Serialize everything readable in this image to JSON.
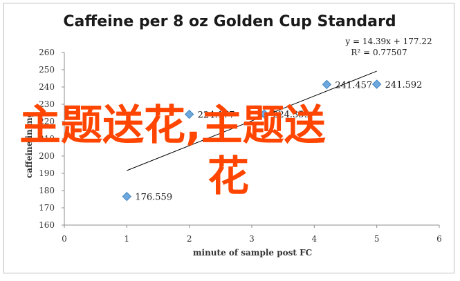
{
  "chart_data": {
    "type": "scatter",
    "title": "Caffeine per 8 oz Golden Cup Standard",
    "xlabel": "minute of sample post FC",
    "ylabel": "caffeine in mg",
    "xlim": [
      0,
      6
    ],
    "ylim": [
      160,
      260
    ],
    "xticks": [
      "0",
      "1",
      "2",
      "3",
      "4",
      "5",
      "6"
    ],
    "yticks": [
      "160",
      "170",
      "180",
      "190",
      "200",
      "210",
      "220",
      "230",
      "240",
      "250",
      "260"
    ],
    "points": [
      {
        "x": 1,
        "y": 176.559,
        "label": "176.559"
      },
      {
        "x": 2,
        "y": 224.177,
        "label": "224.177"
      },
      {
        "x": 3.2,
        "y": 224.359,
        "label": "224.359"
      },
      {
        "x": 4.2,
        "y": 241.457,
        "label": "241.457"
      },
      {
        "x": 5,
        "y": 241.592,
        "label": "241.592"
      }
    ],
    "trendline": {
      "slope": 14.39,
      "intercept": 177.22,
      "x_range": [
        1,
        5
      ],
      "equation": "y = 14.39x + 177.22",
      "r_squared": "R² = 0.77507"
    },
    "marker_color": "#6fa8dc",
    "line_color": "#000000",
    "grid": false,
    "legend": "none"
  },
  "overlay": {
    "watermark_line1": "主题送花,主题送",
    "watermark_line2": "花",
    "color": "#ff4500"
  }
}
